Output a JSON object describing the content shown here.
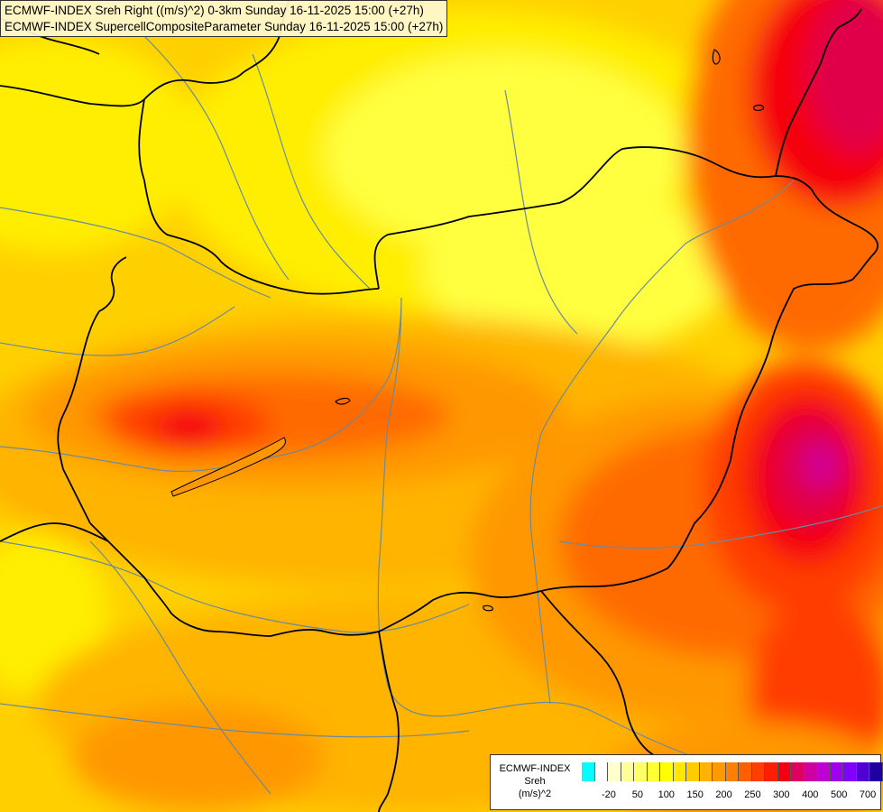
{
  "titles": {
    "line1": "ECMWF-INDEX Sreh Right ((m/s)^2) 0-3km Sunday 16-11-2025 15:00 (+27h)",
    "line2": "ECMWF-INDEX SupercellCompositeParameter Sunday 16-11-2025 15:00 (+27h)"
  },
  "legend": {
    "line1": "ECMWF-INDEX",
    "line2": "Sreh",
    "line3": "(m/s)^2",
    "colors": [
      "#00ffff",
      "#ffffff",
      "#ffffcc",
      "#ffff99",
      "#ffff66",
      "#ffff33",
      "#ffff00",
      "#ffe600",
      "#ffcc00",
      "#ffb300",
      "#ff9900",
      "#ff7f00",
      "#ff5f00",
      "#ff3f00",
      "#ff1f00",
      "#f00010",
      "#e00060",
      "#d000a0",
      "#c000d0",
      "#a000f0",
      "#8000ff",
      "#5000d0",
      "#2000a0"
    ],
    "ticks": [
      {
        "label": "-20",
        "index": 1
      },
      {
        "label": "50",
        "index": 3
      },
      {
        "label": "100",
        "index": 5
      },
      {
        "label": "150",
        "index": 7
      },
      {
        "label": "200",
        "index": 9
      },
      {
        "label": "250",
        "index": 11
      },
      {
        "label": "300",
        "index": 13
      },
      {
        "label": "400",
        "index": 15
      },
      {
        "label": "500",
        "index": 17
      },
      {
        "label": "700",
        "index": 19
      }
    ]
  },
  "map_colors": {
    "base": "#ffd000",
    "light_yellow": "#ffff40",
    "yellow": "#ffee00",
    "amber": "#ffb400",
    "orange": "#ff9800",
    "dark_orange": "#ff6a00",
    "red_orange": "#ff3c00",
    "red": "#f50010",
    "crimson": "#e0004a",
    "magenta": "#d0009a",
    "border": "#000000",
    "river": "#6a8aa0"
  }
}
